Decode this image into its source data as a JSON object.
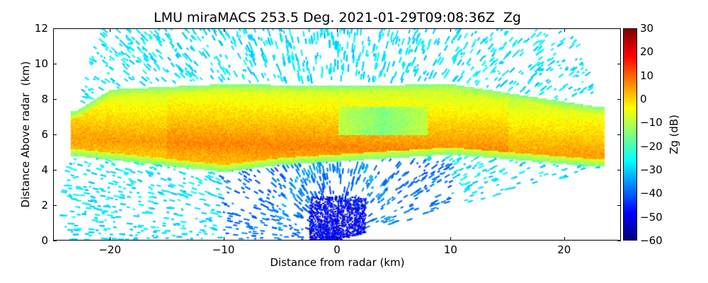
{
  "chart_data": {
    "type": "heatmap",
    "title": "LMU miraMACS 253.5 Deg. 2021-01-29T09:08:36Z  Zg",
    "xlabel": "Distance from radar (km)",
    "ylabel": "Distance Above radar  (km)",
    "xlim": [
      -25,
      25
    ],
    "ylim": [
      0,
      12
    ],
    "xticks": [
      -20,
      -10,
      0,
      10,
      20
    ],
    "yticks": [
      0,
      2,
      4,
      6,
      8,
      10,
      12
    ],
    "colorbar": {
      "label": "Zg (dB)",
      "range": [
        -60,
        30
      ],
      "ticks": [
        30,
        20,
        10,
        0,
        -10,
        -20,
        -30,
        -40,
        -50,
        -60
      ],
      "colormap": "jet"
    },
    "scan": {
      "type": "RHI",
      "max_range_km": 24,
      "min_elevation_right_deg": 10
    },
    "layers": [
      {
        "name": "cloud band",
        "x_range_km": [
          -23.5,
          23.5
        ],
        "base_km": [
          [
            -23,
            4.8
          ],
          [
            -10,
            3.9
          ],
          [
            -5,
            4.3
          ],
          [
            0,
            4.5
          ],
          [
            10,
            4.9
          ],
          [
            23,
            4.2
          ]
        ],
        "top_km": [
          [
            -23,
            7.4
          ],
          [
            -20,
            8.6
          ],
          [
            -10,
            8.9
          ],
          [
            0,
            8.8
          ],
          [
            10,
            8.9
          ],
          [
            23,
            7.6
          ]
        ],
        "core_height_km": 5.3,
        "core_dBZ": 7,
        "edge_dBZ": -15
      },
      {
        "name": "embedded low-reflectivity region",
        "x_range_km": [
          0,
          8
        ],
        "z_range_km": [
          6,
          7.6
        ],
        "dBZ": -15
      },
      {
        "name": "clear-air noise far",
        "dBZ": -25
      },
      {
        "name": "clear-air noise near radar",
        "range_km": [
          0,
          5
        ],
        "dBZ": -50
      }
    ]
  }
}
